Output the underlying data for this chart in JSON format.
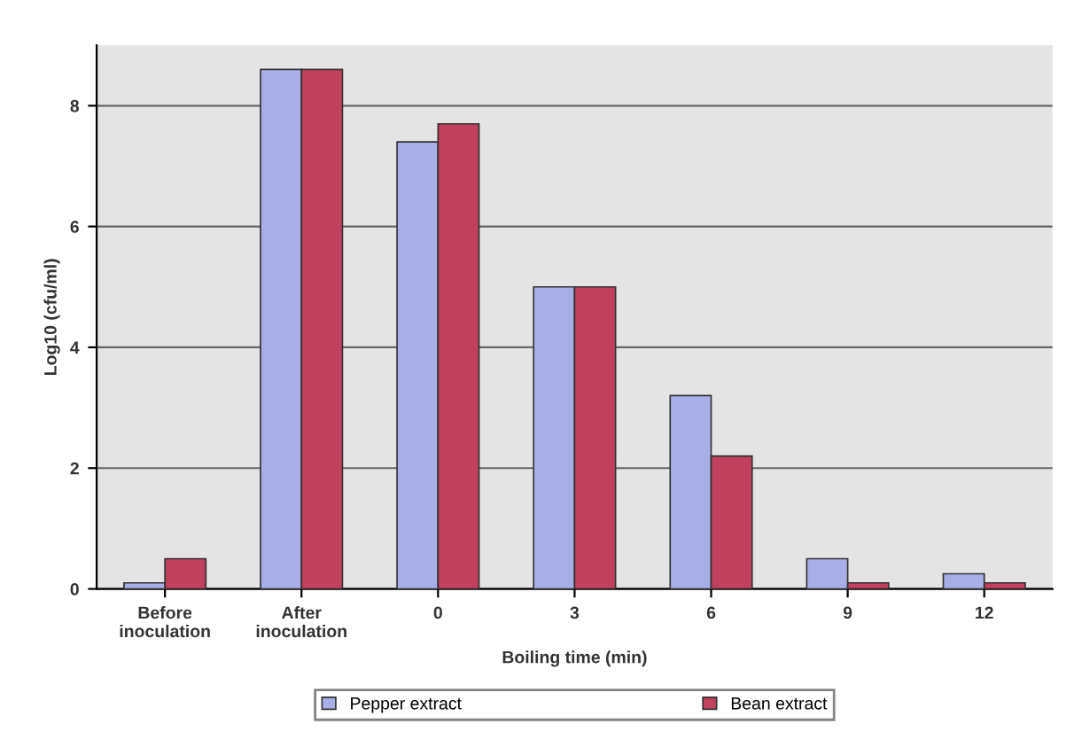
{
  "chart_data": {
    "type": "bar",
    "xlabel": "Boiling time (min)",
    "ylabel": "Log10 (cfu/ml)",
    "categories": [
      "Before\ninoculation",
      "After\ninoculation",
      "0",
      "3",
      "6",
      "9",
      "12"
    ],
    "series": [
      {
        "name": "Pepper extract",
        "color": "#a8aee6",
        "values": [
          0.1,
          8.6,
          7.4,
          5.0,
          3.2,
          0.5,
          0.25
        ]
      },
      {
        "name": "Bean extract",
        "color": "#c0405e",
        "values": [
          0.5,
          8.6,
          7.7,
          5.0,
          2.2,
          0.1,
          0.1
        ]
      }
    ],
    "ylim": [
      0,
      9
    ],
    "yticks": [
      0,
      2,
      4,
      6,
      8
    ],
    "grid": "y",
    "legend": "bottom"
  }
}
